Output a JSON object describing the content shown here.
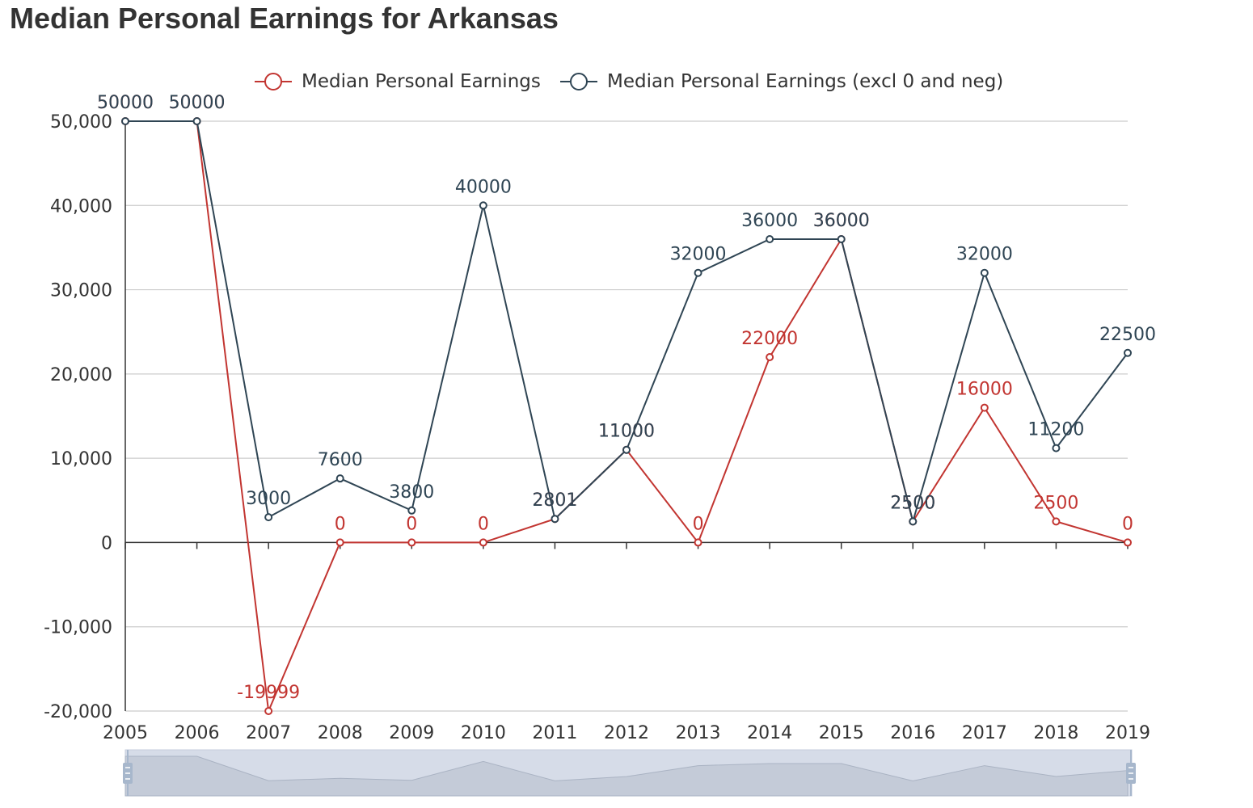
{
  "title": "Median Personal Earnings for Arkansas",
  "colors": {
    "series1": "#c23531",
    "series2": "#2f4554",
    "grid": "#cccccc",
    "axis": "#333333",
    "zoom_fill": "#d6dce8",
    "zoom_handle": "#a7b7cc"
  },
  "chart_data": {
    "type": "line",
    "title": "Median Personal Earnings for Arkansas",
    "xlabel": "",
    "ylabel": "",
    "x": [
      "2005",
      "2006",
      "2007",
      "2008",
      "2009",
      "2010",
      "2011",
      "2012",
      "2013",
      "2014",
      "2015",
      "2016",
      "2017",
      "2018",
      "2019"
    ],
    "ylim": [
      -20000,
      50000
    ],
    "yticks": [
      -20000,
      -10000,
      0,
      10000,
      20000,
      30000,
      40000,
      50000
    ],
    "ytick_labels": [
      "-20,000",
      "-10,000",
      "0",
      "10,000",
      "20,000",
      "30,000",
      "40,000",
      "50,000"
    ],
    "grid": true,
    "legend_position": "top-center",
    "has_data_zoom_slider": true,
    "series": [
      {
        "name": "Median Personal Earnings",
        "values": [
          50000,
          50000,
          -19999,
          0,
          0,
          0,
          2801,
          11000,
          0,
          22000,
          36000,
          2500,
          16000,
          2500,
          0
        ]
      },
      {
        "name": "Median Personal Earnings (excl 0 and neg)",
        "values": [
          50000,
          50000,
          3000,
          7600,
          3800,
          40000,
          2801,
          11000,
          32000,
          36000,
          36000,
          2500,
          32000,
          11200,
          22500
        ]
      }
    ]
  }
}
